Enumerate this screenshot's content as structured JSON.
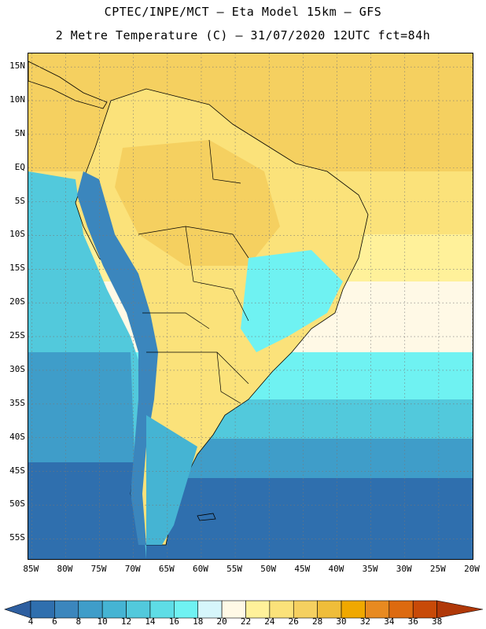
{
  "header": {
    "title_line1": "CPTEC/INPE/MCT –  Eta Model 15km – GFS",
    "title_line2": "2 Metre Temperature (C) – 31/07/2020 12UTC fct=84h"
  },
  "map": {
    "latitude_labels": [
      "15N",
      "10N",
      "5N",
      "EQ",
      "5S",
      "10S",
      "15S",
      "20S",
      "25S",
      "30S",
      "35S",
      "40S",
      "45S",
      "50S",
      "55S"
    ],
    "longitude_labels": [
      "85W",
      "80W",
      "75W",
      "70W",
      "65W",
      "60W",
      "55W",
      "50W",
      "45W",
      "40W",
      "35W",
      "30W",
      "25W",
      "20W"
    ],
    "lat_range": [
      17,
      -58
    ],
    "lon_range": [
      -85.5,
      -20
    ]
  },
  "colorbar": {
    "labels": [
      "4",
      "6",
      "8",
      "10",
      "12",
      "14",
      "16",
      "18",
      "20",
      "22",
      "24",
      "26",
      "28",
      "30",
      "32",
      "34",
      "36",
      "38"
    ],
    "colors": [
      "#2e5fa0",
      "#2f6fae",
      "#3b86bd",
      "#3f9dc9",
      "#45b4d3",
      "#52c9dc",
      "#5edde6",
      "#6ff2f2",
      "#d6f6fb",
      "#fff9e6",
      "#fff19a",
      "#fbe27a",
      "#f5d060",
      "#efbd3a",
      "#f0a800",
      "#e88a20",
      "#dd6a10",
      "#c84a08",
      "#b03808"
    ]
  }
}
